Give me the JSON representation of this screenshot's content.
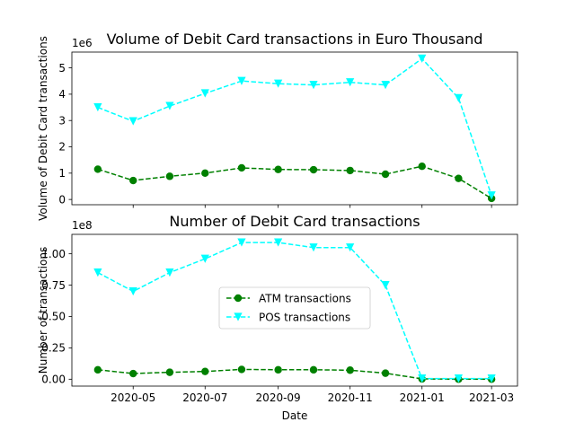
{
  "chart_data": [
    {
      "type": "line",
      "title": "Volume of Debit Card transactions in Euro Thousand",
      "xlabel": "",
      "ylabel": "Volume of Debit Card transactions",
      "offset_text": "1e6",
      "x": [
        "2020-04-01",
        "2020-05-01",
        "2020-06-01",
        "2020-07-01",
        "2020-08-01",
        "2020-09-01",
        "2020-10-01",
        "2020-11-01",
        "2020-12-01",
        "2021-01-01",
        "2021-02-01",
        "2021-03-01"
      ],
      "xlim": [
        "2020-03-10",
        "2021-03-23"
      ],
      "ylim": [
        -0.2,
        5.6
      ],
      "yticks": [
        0,
        1,
        2,
        3,
        4,
        5
      ],
      "yticklabels": [
        "0",
        "1",
        "2",
        "3",
        "4",
        "5"
      ],
      "xticks": [
        "2020-05-01",
        "2020-07-01",
        "2020-09-01",
        "2020-11-01",
        "2021-01-01",
        "2021-03-01"
      ],
      "show_xticklabels": false,
      "grid": false,
      "series": [
        {
          "values": [
            1.15,
            0.72,
            0.88,
            1.0,
            1.2,
            1.14,
            1.13,
            1.1,
            0.96,
            1.26,
            0.8,
            0.04
          ],
          "color": "#008000",
          "marker": "circle",
          "linestyle": "dashed"
        },
        {
          "values": [
            3.5,
            2.97,
            3.55,
            4.03,
            4.5,
            4.4,
            4.35,
            4.45,
            4.35,
            5.35,
            3.85,
            0.15
          ],
          "color": "#00ffff",
          "marker": "triangle-down",
          "linestyle": "dashed"
        }
      ]
    },
    {
      "type": "line",
      "title": "Number of Debit Card transactions",
      "xlabel": "Date",
      "ylabel": "Number of transactions",
      "offset_text": "1e8",
      "x": [
        "2020-04-01",
        "2020-05-01",
        "2020-06-01",
        "2020-07-01",
        "2020-08-01",
        "2020-09-01",
        "2020-10-01",
        "2020-11-01",
        "2020-12-01",
        "2021-01-01",
        "2021-02-01",
        "2021-03-01"
      ],
      "xlim": [
        "2020-03-10",
        "2021-03-23"
      ],
      "ylim": [
        -0.055,
        1.155
      ],
      "yticks": [
        0,
        0.25,
        0.5,
        0.75,
        1.0
      ],
      "yticklabels": [
        "0.00",
        "0.25",
        "0.50",
        "0.75",
        "1.00"
      ],
      "xticks": [
        "2020-05-01",
        "2020-07-01",
        "2020-09-01",
        "2020-11-01",
        "2021-01-01",
        "2021-03-01"
      ],
      "xticklabels": [
        "2020-05",
        "2020-07",
        "2020-09",
        "2020-11",
        "2021-01",
        "2021-03"
      ],
      "show_xticklabels": true,
      "grid": false,
      "legend": "center",
      "series": [
        {
          "name": "ATM transactions",
          "values": [
            0.075,
            0.045,
            0.055,
            0.062,
            0.078,
            0.075,
            0.075,
            0.072,
            0.048,
            0.002,
            0.0,
            0.0
          ],
          "color": "#008000",
          "marker": "circle",
          "linestyle": "dashed"
        },
        {
          "name": "POS transactions",
          "values": [
            0.85,
            0.7,
            0.85,
            0.96,
            1.09,
            1.09,
            1.05,
            1.05,
            0.75,
            0.005,
            0.005,
            0.005
          ],
          "color": "#00ffff",
          "marker": "triangle-down",
          "linestyle": "dashed"
        }
      ]
    }
  ]
}
